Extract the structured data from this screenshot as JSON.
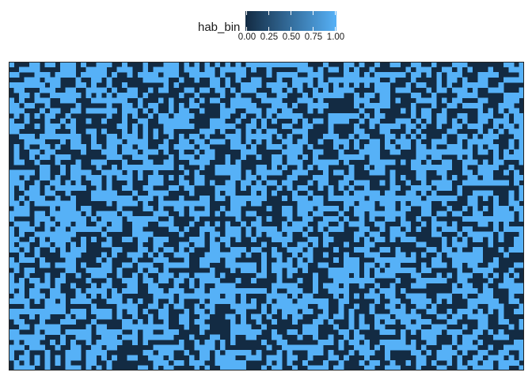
{
  "chart_data": {
    "type": "heatmap",
    "title": "",
    "xlabel": "",
    "ylabel": "",
    "grid": false,
    "fill_variable": "hab_bin",
    "legend": {
      "title": "hab_bin",
      "position": "top",
      "type": "colorbar",
      "range": [
        0,
        1
      ],
      "tick_labels": [
        "0.00",
        "0.25",
        "0.50",
        "0.75",
        "1.00"
      ],
      "low_color": "#132B43",
      "high_color": "#56B1F7"
    },
    "grid_dims": {
      "columns": 100,
      "rows": 60
    },
    "value_set": [
      0,
      1
    ],
    "approx_share_of_ones": 0.5,
    "pattern": "random binary raster"
  }
}
